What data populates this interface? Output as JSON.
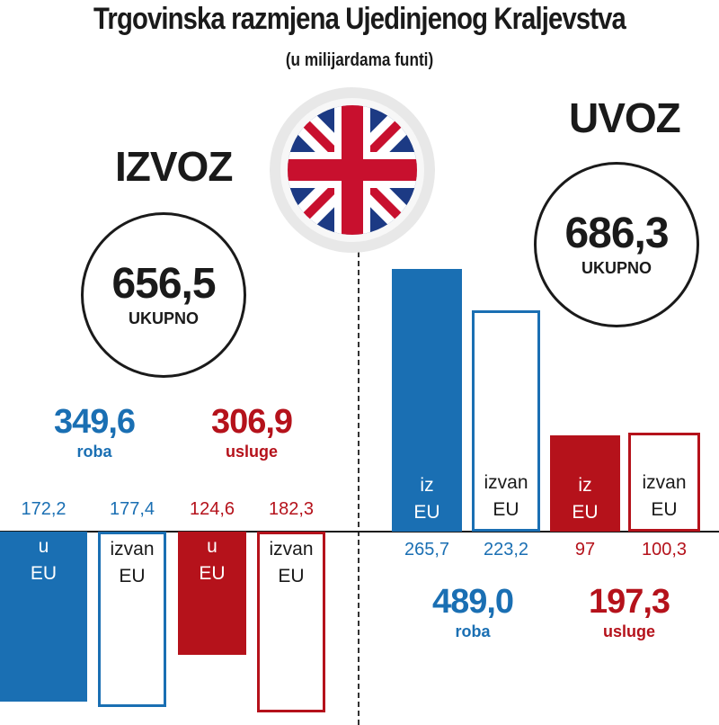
{
  "title": "Trgovinska razmjena Ujedinjenog Kraljevstva",
  "subtitle": "(u milijardama funti)",
  "colors": {
    "blue": "#1a6fb3",
    "red": "#b5121b",
    "dark": "#1a1a1a"
  },
  "export": {
    "heading": "IZVOZ",
    "total": "656,5",
    "total_label": "UKUPNO",
    "goods_total": "349,6",
    "goods_label": "roba",
    "services_total": "306,9",
    "services_label": "usluge"
  },
  "import": {
    "heading": "UVOZ",
    "total": "686,3",
    "total_label": "UKUPNO",
    "goods_total": "489,0",
    "goods_label": "roba",
    "services_total": "197,3",
    "services_label": "usluge"
  },
  "chart_data": {
    "type": "bar",
    "unit": "u milijardama funti",
    "series": [
      {
        "group": "IZVOZ",
        "category": "roba",
        "label_line1": "u",
        "label_line2": "EU",
        "value": 172.2,
        "value_label": "172,2",
        "style": "filled",
        "color": "blue"
      },
      {
        "group": "IZVOZ",
        "category": "roba",
        "label_line1": "izvan",
        "label_line2": "EU",
        "value": 177.4,
        "value_label": "177,4",
        "style": "outline",
        "color": "blue"
      },
      {
        "group": "IZVOZ",
        "category": "usluge",
        "label_line1": "u",
        "label_line2": "EU",
        "value": 124.6,
        "value_label": "124,6",
        "style": "filled",
        "color": "red"
      },
      {
        "group": "IZVOZ",
        "category": "usluge",
        "label_line1": "izvan",
        "label_line2": "EU",
        "value": 182.3,
        "value_label": "182,3",
        "style": "outline",
        "color": "red"
      },
      {
        "group": "UVOZ",
        "category": "roba",
        "label_line1": "iz",
        "label_line2": "EU",
        "value": 265.7,
        "value_label": "265,7",
        "style": "filled",
        "color": "blue"
      },
      {
        "group": "UVOZ",
        "category": "roba",
        "label_line1": "izvan",
        "label_line2": "EU",
        "value": 223.2,
        "value_label": "223,2",
        "style": "outline",
        "color": "blue"
      },
      {
        "group": "UVOZ",
        "category": "usluge",
        "label_line1": "iz",
        "label_line2": "EU",
        "value": 97,
        "value_label": "97",
        "style": "filled",
        "color": "red"
      },
      {
        "group": "UVOZ",
        "category": "usluge",
        "label_line1": "izvan",
        "label_line2": "EU",
        "value": 100.3,
        "value_label": "100,3",
        "style": "outline",
        "color": "red"
      }
    ]
  }
}
